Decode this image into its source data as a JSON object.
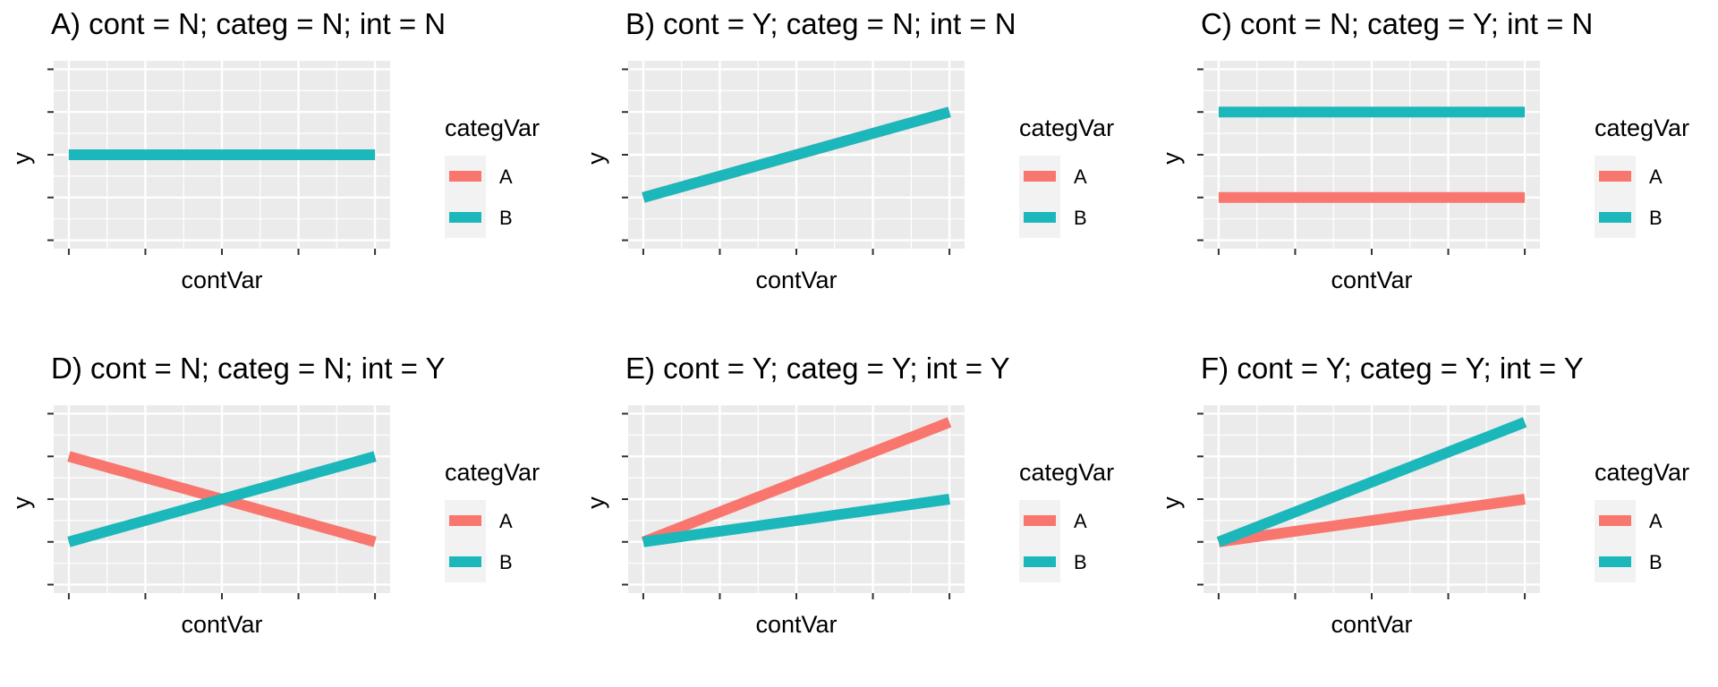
{
  "colors": {
    "A": "#F8766D",
    "B": "#1CB7BB",
    "panel_bg": "#EBEBEB",
    "grid": "#FFFFFF",
    "tick": "#333333"
  },
  "chart_data": [
    {
      "type": "line",
      "title": "A) cont = N; categ = N; int = N",
      "xlabel": "contVar",
      "ylabel": "y",
      "xlim": [
        0,
        1
      ],
      "ylim": [
        0,
        1
      ],
      "legend_title": "categVar",
      "series": [
        {
          "name": "A",
          "x": [
            0,
            1
          ],
          "values": [
            0.5,
            0.5
          ]
        },
        {
          "name": "B",
          "x": [
            0,
            1
          ],
          "values": [
            0.5,
            0.5
          ]
        }
      ]
    },
    {
      "type": "line",
      "title": "B) cont = Y; categ = N; int = N",
      "xlabel": "contVar",
      "ylabel": "y",
      "xlim": [
        0,
        1
      ],
      "ylim": [
        0,
        1
      ],
      "legend_title": "categVar",
      "series": [
        {
          "name": "A",
          "x": [
            0,
            1
          ],
          "values": [
            0.25,
            0.75
          ]
        },
        {
          "name": "B",
          "x": [
            0,
            1
          ],
          "values": [
            0.25,
            0.75
          ]
        }
      ]
    },
    {
      "type": "line",
      "title": "C) cont = N; categ = Y; int = N",
      "xlabel": "contVar",
      "ylabel": "y",
      "xlim": [
        0,
        1
      ],
      "ylim": [
        0,
        1
      ],
      "legend_title": "categVar",
      "series": [
        {
          "name": "A",
          "x": [
            0,
            1
          ],
          "values": [
            0.25,
            0.25
          ]
        },
        {
          "name": "B",
          "x": [
            0,
            1
          ],
          "values": [
            0.75,
            0.75
          ]
        }
      ]
    },
    {
      "type": "line",
      "title": "D) cont = N; categ = N; int = Y",
      "xlabel": "contVar",
      "ylabel": "y",
      "xlim": [
        0,
        1
      ],
      "ylim": [
        0,
        1
      ],
      "legend_title": "categVar",
      "series": [
        {
          "name": "A",
          "x": [
            0,
            1
          ],
          "values": [
            0.75,
            0.25
          ]
        },
        {
          "name": "B",
          "x": [
            0,
            1
          ],
          "values": [
            0.25,
            0.75
          ]
        }
      ]
    },
    {
      "type": "line",
      "title": "E) cont = Y; categ = Y; int = Y",
      "xlabel": "contVar",
      "ylabel": "y",
      "xlim": [
        0,
        1
      ],
      "ylim": [
        0,
        1
      ],
      "legend_title": "categVar",
      "series": [
        {
          "name": "A",
          "x": [
            0,
            1
          ],
          "values": [
            0.25,
            0.95
          ]
        },
        {
          "name": "B",
          "x": [
            0,
            1
          ],
          "values": [
            0.25,
            0.5
          ]
        }
      ]
    },
    {
      "type": "line",
      "title": "F) cont = Y; categ = Y; int = Y",
      "xlabel": "contVar",
      "ylabel": "y",
      "xlim": [
        0,
        1
      ],
      "ylim": [
        0,
        1
      ],
      "legend_title": "categVar",
      "series": [
        {
          "name": "A",
          "x": [
            0,
            1
          ],
          "values": [
            0.25,
            0.5
          ]
        },
        {
          "name": "B",
          "x": [
            0,
            1
          ],
          "values": [
            0.25,
            0.95
          ]
        }
      ]
    }
  ]
}
